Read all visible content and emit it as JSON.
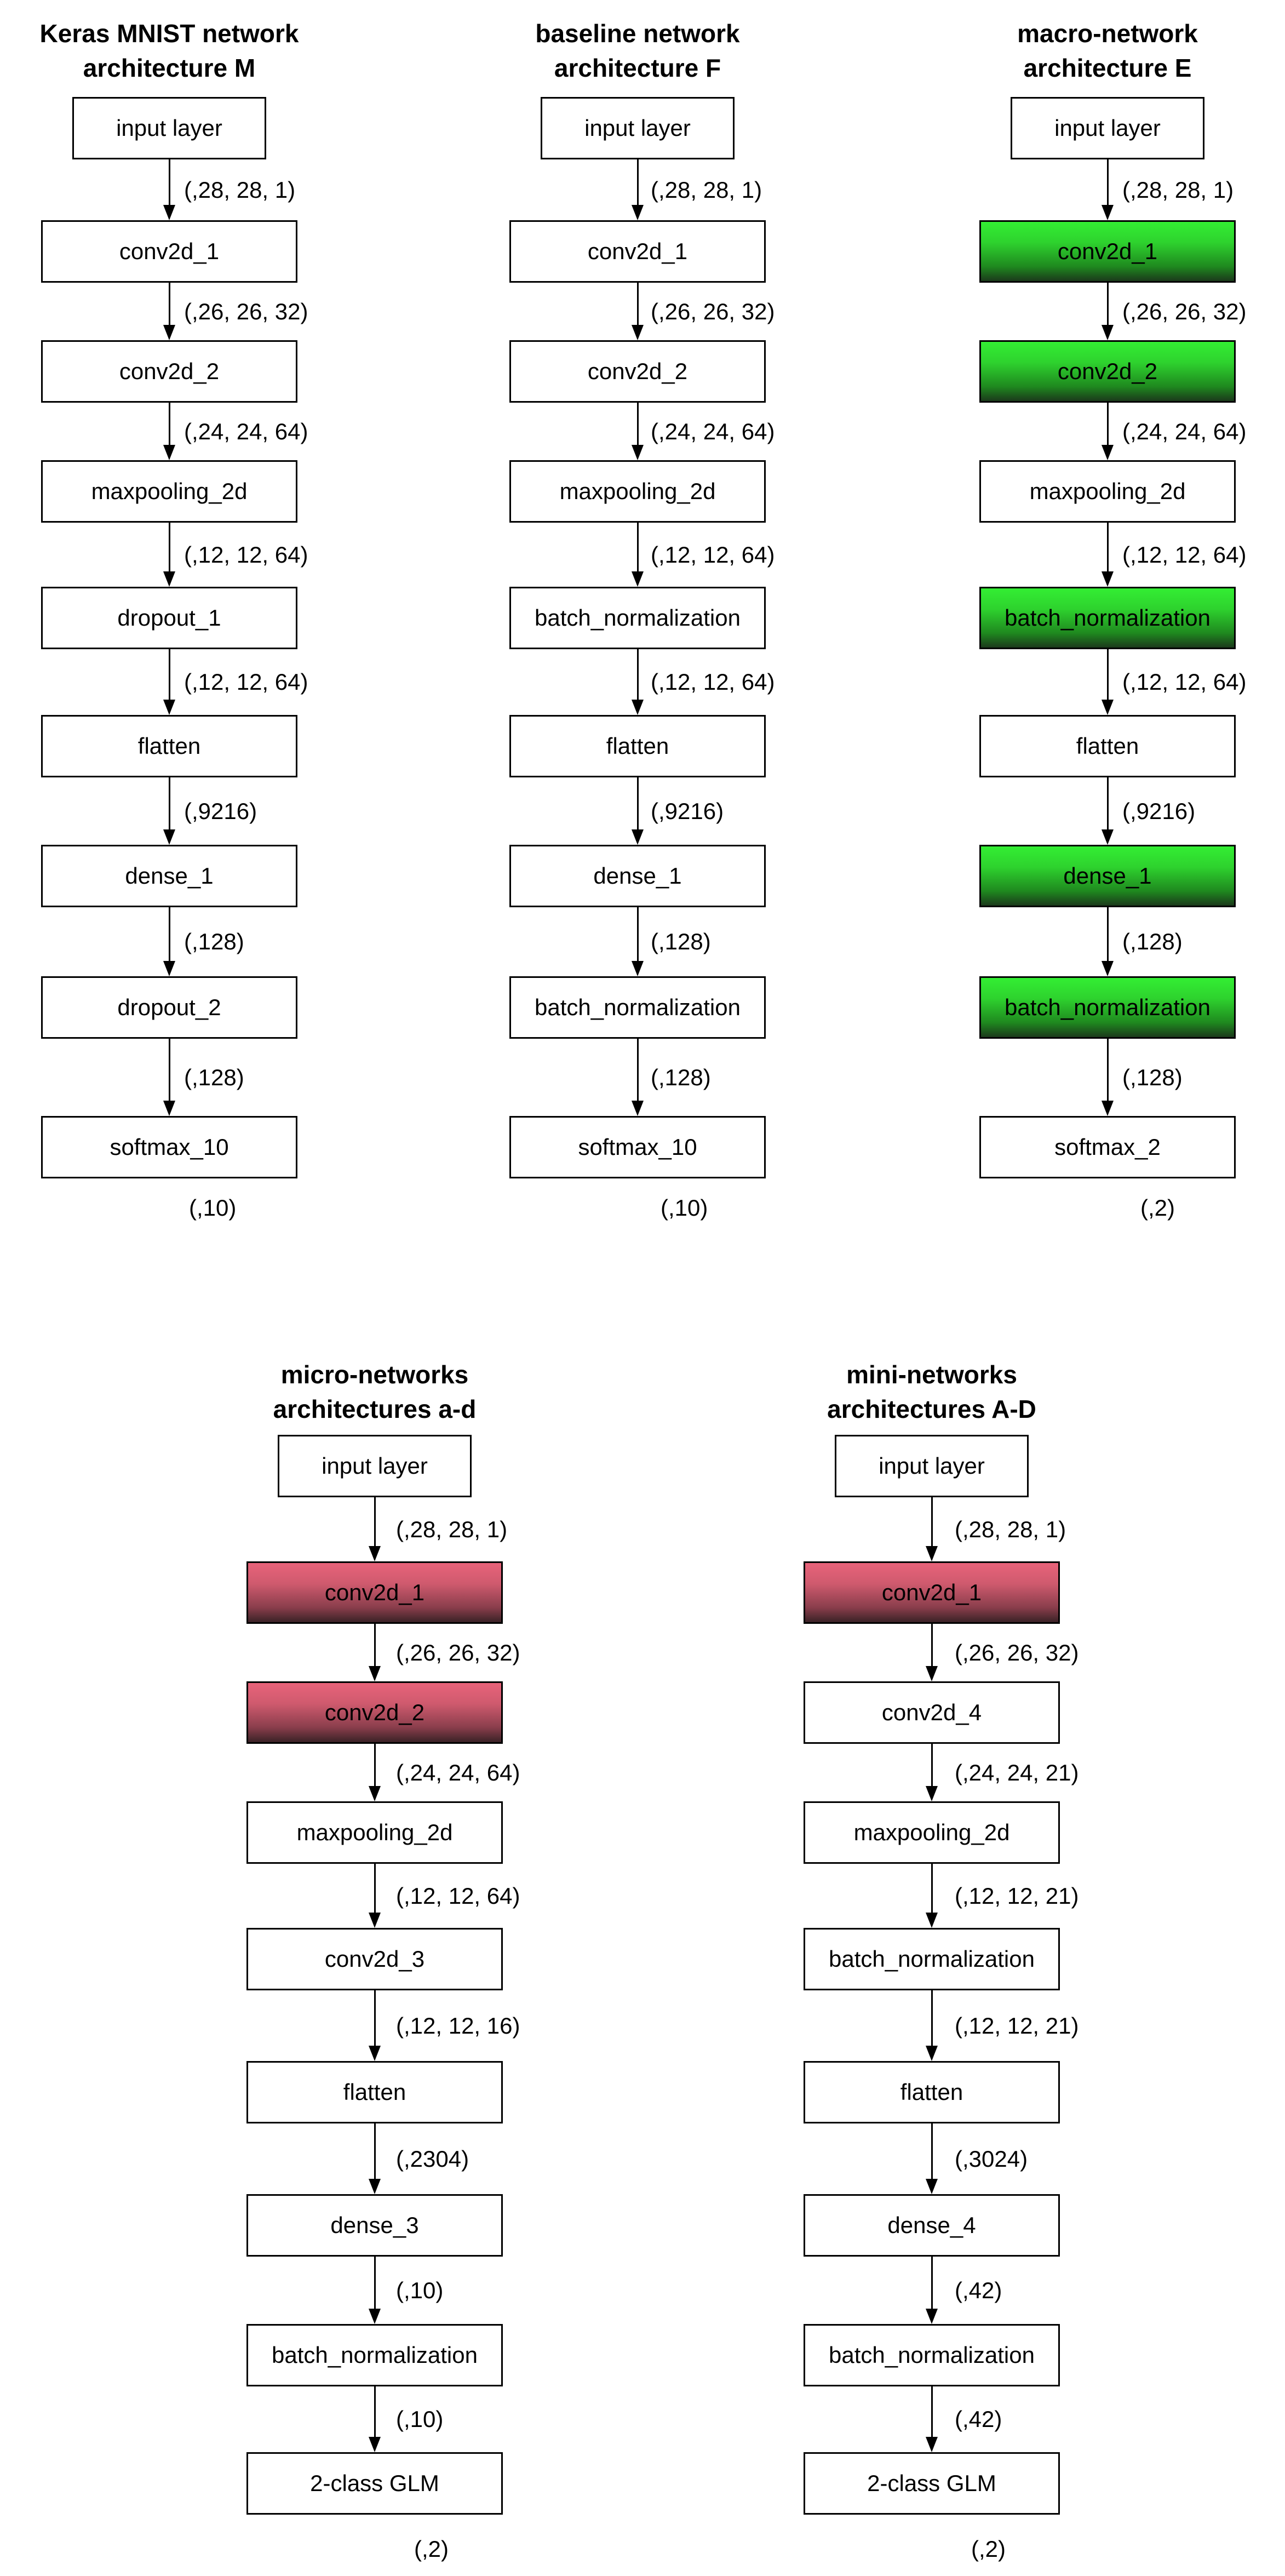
{
  "diagrams": [
    {
      "title_lines": [
        "Keras MNIST network",
        "architecture  M"
      ],
      "layers": [
        {
          "label": "input layer",
          "highlight": "none"
        },
        {
          "label": "conv2d_1",
          "highlight": "none"
        },
        {
          "label": "conv2d_2",
          "highlight": "none"
        },
        {
          "label": "maxpooling_2d",
          "highlight": "none"
        },
        {
          "label": "dropout_1",
          "highlight": "none"
        },
        {
          "label": "flatten",
          "highlight": "none"
        },
        {
          "label": "dense_1",
          "highlight": "none"
        },
        {
          "label": "dropout_2",
          "highlight": "none"
        },
        {
          "label": "softmax_10",
          "highlight": "none"
        }
      ],
      "shapes": [
        "(,28, 28, 1)",
        "(,26, 26, 32)",
        "(,24, 24, 64)",
        "(,12, 12, 64)",
        "(,12, 12, 64)",
        "(,9216)",
        "(,128)",
        "(,128)"
      ],
      "output_shape": "(,10)"
    },
    {
      "title_lines": [
        "baseline network",
        "architecture  F"
      ],
      "layers": [
        {
          "label": "input layer",
          "highlight": "none"
        },
        {
          "label": "conv2d_1",
          "highlight": "none"
        },
        {
          "label": "conv2d_2",
          "highlight": "none"
        },
        {
          "label": "maxpooling_2d",
          "highlight": "none"
        },
        {
          "label": "batch_normalization",
          "highlight": "none"
        },
        {
          "label": "flatten",
          "highlight": "none"
        },
        {
          "label": "dense_1",
          "highlight": "none"
        },
        {
          "label": "batch_normalization",
          "highlight": "none"
        },
        {
          "label": "softmax_10",
          "highlight": "none"
        }
      ],
      "shapes": [
        "(,28, 28, 1)",
        "(,26, 26, 32)",
        "(,24, 24, 64)",
        "(,12, 12, 64)",
        "(,12, 12, 64)",
        "(,9216)",
        "(,128)",
        "(,128)"
      ],
      "output_shape": "(,10)"
    },
    {
      "title_lines": [
        "macro-network",
        "architecture  E"
      ],
      "layers": [
        {
          "label": "input layer",
          "highlight": "none"
        },
        {
          "label": "conv2d_1",
          "highlight": "green"
        },
        {
          "label": "conv2d_2",
          "highlight": "green"
        },
        {
          "label": "maxpooling_2d",
          "highlight": "none"
        },
        {
          "label": "batch_normalization",
          "highlight": "green"
        },
        {
          "label": "flatten",
          "highlight": "none"
        },
        {
          "label": "dense_1",
          "highlight": "green"
        },
        {
          "label": "batch_normalization",
          "highlight": "green"
        },
        {
          "label": "softmax_2",
          "highlight": "none"
        }
      ],
      "shapes": [
        "(,28, 28, 1)",
        "(,26, 26, 32)",
        "(,24, 24, 64)",
        "(,12, 12, 64)",
        "(,12, 12, 64)",
        "(,9216)",
        "(,128)",
        "(,128)"
      ],
      "output_shape": "(,2)"
    },
    {
      "title_lines": [
        "micro-networks",
        "architectures a-d"
      ],
      "layers": [
        {
          "label": "input layer",
          "highlight": "none"
        },
        {
          "label": "conv2d_1",
          "highlight": "red"
        },
        {
          "label": "conv2d_2",
          "highlight": "red"
        },
        {
          "label": "maxpooling_2d",
          "highlight": "none"
        },
        {
          "label": "conv2d_3",
          "highlight": "none"
        },
        {
          "label": "flatten",
          "highlight": "none"
        },
        {
          "label": "dense_3",
          "highlight": "none"
        },
        {
          "label": "batch_normalization",
          "highlight": "none"
        },
        {
          "label": "2-class GLM",
          "highlight": "none"
        }
      ],
      "shapes": [
        "(,28, 28, 1)",
        "(,26, 26, 32)",
        "(,24, 24, 64)",
        "(,12, 12, 64)",
        "(,12, 12, 16)",
        "(,2304)",
        "(,10)",
        "(,10)"
      ],
      "output_shape": "(,2)"
    },
    {
      "title_lines": [
        "mini-networks",
        "architectures A-D"
      ],
      "layers": [
        {
          "label": "input layer",
          "highlight": "none"
        },
        {
          "label": "conv2d_1",
          "highlight": "red"
        },
        {
          "label": "conv2d_4",
          "highlight": "none"
        },
        {
          "label": "maxpooling_2d",
          "highlight": "none"
        },
        {
          "label": "batch_normalization",
          "highlight": "none"
        },
        {
          "label": "flatten",
          "highlight": "none"
        },
        {
          "label": "dense_4",
          "highlight": "none"
        },
        {
          "label": "batch_normalization",
          "highlight": "none"
        },
        {
          "label": "2-class GLM",
          "highlight": "none"
        }
      ],
      "shapes": [
        "(,28, 28, 1)",
        "(,26, 26, 32)",
        "(,24, 24, 21)",
        "(,12, 12, 21)",
        "(,12, 12, 21)",
        "(,3024)",
        "(,42)",
        "(,42)"
      ],
      "output_shape": "(,2)"
    }
  ]
}
